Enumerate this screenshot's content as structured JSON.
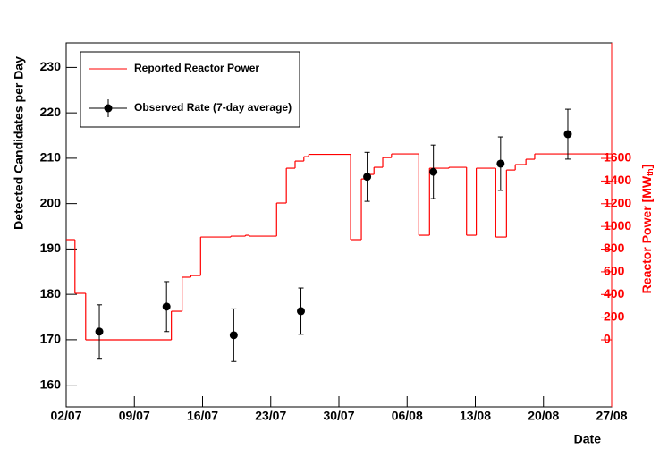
{
  "chart_data": {
    "type": "step-errorbar",
    "xlabel": "Date",
    "ylabel": "Detected Candidates per Day",
    "y2label": [
      "Reactor Power [MW",
      "th",
      "]"
    ],
    "xlim": [
      0,
      56
    ],
    "xticks": [
      {
        "value": 0,
        "label": "02/07"
      },
      {
        "value": 7,
        "label": "09/07"
      },
      {
        "value": 14,
        "label": "16/07"
      },
      {
        "value": 21,
        "label": "23/07"
      },
      {
        "value": 28,
        "label": "30/07"
      },
      {
        "value": 35,
        "label": "06/08"
      },
      {
        "value": 42,
        "label": "13/08"
      },
      {
        "value": 49,
        "label": "20/08"
      },
      {
        "value": 56,
        "label": "27/08"
      }
    ],
    "ylim": [
      155.2,
      235.4
    ],
    "yticks": [
      160,
      170,
      180,
      190,
      200,
      210,
      220,
      230
    ],
    "y2lim": [
      -591,
      2617
    ],
    "y2ticks": [
      0,
      200,
      400,
      600,
      800,
      1000,
      1200,
      1400,
      1600
    ],
    "y2color": "#ff0000",
    "legend": "top-left",
    "series": [
      {
        "name": "Reported Reactor Power",
        "type": "step",
        "axis": "y2",
        "color": "#ff0000",
        "bins": [
          0,
          0.9,
          2.0,
          10.8,
          11.9,
          12.8,
          13.8,
          16.9,
          18.4,
          18.8,
          21.6,
          22.6,
          23.5,
          24.4,
          24.9,
          29.2,
          30.3,
          31.1,
          31.6,
          32.5,
          33.4,
          36.2,
          37.3,
          39.3,
          41.1,
          42.1,
          44.1,
          45.2,
          46.1,
          47.2,
          48.1,
          56
        ],
        "values": [
          883,
          410,
          0,
          252,
          552,
          567,
          906,
          914,
          922,
          914,
          1206,
          1513,
          1576,
          1615,
          1635,
          883,
          1418,
          1458,
          1521,
          1607,
          1639,
          922,
          1513,
          1521,
          922,
          1513,
          906,
          1497,
          1545,
          1592,
          1639
        ]
      },
      {
        "name": "Observed Rate (7-day average)",
        "type": "errorbar",
        "color": "#000000",
        "x": [
          3.4,
          10.3,
          17.2,
          24.1,
          30.9,
          37.7,
          44.6,
          51.5
        ],
        "values": [
          171.8,
          177.3,
          171.0,
          176.3,
          205.9,
          207.0,
          208.8,
          215.3
        ],
        "errors": [
          5.9,
          5.5,
          5.8,
          5.1,
          5.4,
          5.9,
          5.9,
          5.5
        ]
      }
    ]
  }
}
